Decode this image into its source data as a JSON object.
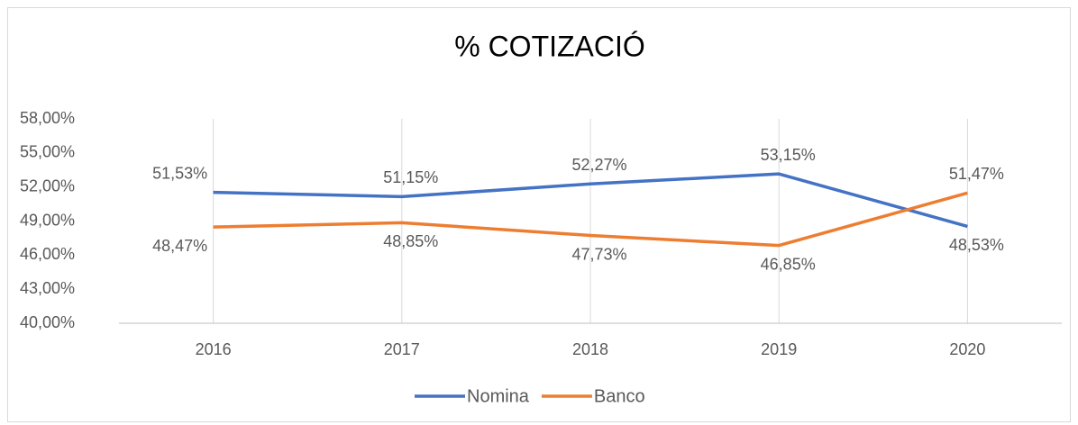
{
  "chart_data": {
    "type": "line",
    "title": "% COTIZACIÓ",
    "categories": [
      "2016",
      "2017",
      "2018",
      "2019",
      "2020"
    ],
    "series": [
      {
        "name": "Nomina",
        "color": "#4472c4",
        "values": [
          51.53,
          51.15,
          52.27,
          53.15,
          48.53
        ],
        "value_labels": [
          "51,53%",
          "51,15%",
          "52,27%",
          "53,15%",
          "48,53%"
        ]
      },
      {
        "name": "Banco",
        "color": "#ed7d31",
        "values": [
          48.47,
          48.85,
          47.73,
          46.85,
          51.47
        ],
        "value_labels": [
          "48,47%",
          "48,85%",
          "47,73%",
          "46,85%",
          "51,47%"
        ]
      }
    ],
    "ylim": [
      40,
      58
    ],
    "yticks": [
      {
        "value": 40,
        "label": "40,00%"
      },
      {
        "value": 43,
        "label": "43,00%"
      },
      {
        "value": 46,
        "label": "46,00%"
      },
      {
        "value": 49,
        "label": "49,00%"
      },
      {
        "value": 52,
        "label": "52,00%"
      },
      {
        "value": 55,
        "label": "55,00%"
      },
      {
        "value": 58,
        "label": "58,00%"
      }
    ],
    "grid": "x",
    "legend": "bottom"
  }
}
